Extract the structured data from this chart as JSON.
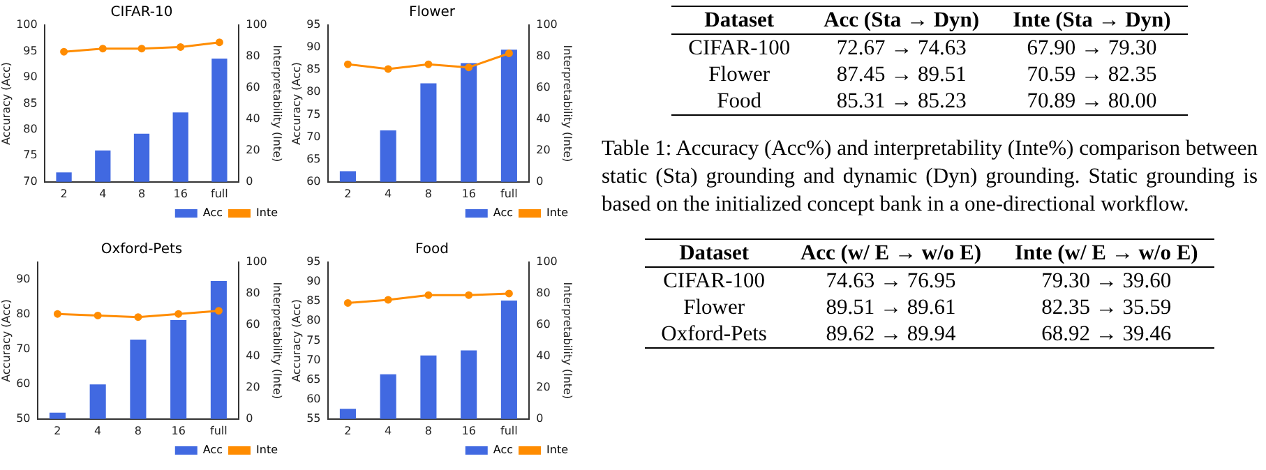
{
  "chart_data": [
    {
      "type": "bar",
      "title": "CIFAR-10",
      "categories": [
        "2",
        "4",
        "8",
        "16",
        "full"
      ],
      "ylabel": "Accuracy (Acc)",
      "y2label": "Interpretability (Inte)",
      "ylim": [
        70,
        100
      ],
      "yticks": [
        70,
        75,
        80,
        85,
        90,
        95,
        100
      ],
      "y2lim": [
        0,
        100
      ],
      "y2ticks": [
        0,
        20,
        40,
        60,
        80,
        100
      ],
      "legend": "bottom right",
      "marker": "circle",
      "series": [
        {
          "name": "Acc",
          "color": "#4169e1",
          "values": [
            71.8,
            76.0,
            79.2,
            83.3,
            93.6
          ]
        },
        {
          "name": "Inte",
          "type": "line",
          "axis": "y2",
          "color": "#ff8c00",
          "values": [
            83,
            85,
            85,
            86,
            89
          ]
        }
      ]
    },
    {
      "type": "bar",
      "title": "Flower",
      "categories": [
        "2",
        "4",
        "8",
        "16",
        "full"
      ],
      "ylabel": "Accuracy (Acc)",
      "y2label": "Interpretability (Inte)",
      "ylim": [
        60,
        95
      ],
      "yticks": [
        60,
        65,
        70,
        75,
        80,
        85,
        90,
        95
      ],
      "y2lim": [
        0,
        100
      ],
      "y2ticks": [
        0,
        20,
        40,
        60,
        80,
        100
      ],
      "legend": "bottom right",
      "marker": "circle",
      "series": [
        {
          "name": "Acc",
          "color": "#4169e1",
          "values": [
            62.4,
            71.5,
            82.0,
            86.5,
            89.5
          ]
        },
        {
          "name": "Inte",
          "type": "line",
          "axis": "y2",
          "color": "#ff8c00",
          "values": [
            75,
            72,
            75,
            73,
            82
          ]
        }
      ]
    },
    {
      "type": "bar",
      "title": "Oxford-Pets",
      "categories": [
        "2",
        "4",
        "8",
        "16",
        "full"
      ],
      "ylabel": "Accuracy (Acc)",
      "y2label": "Interpretability (Inte)",
      "ylim": [
        50,
        95
      ],
      "yticks": [
        50,
        60,
        70,
        80,
        90
      ],
      "y2lim": [
        0,
        100
      ],
      "y2ticks": [
        0,
        20,
        40,
        60,
        80,
        100
      ],
      "legend": "bottom right",
      "marker": "circle",
      "series": [
        {
          "name": "Acc",
          "color": "#4169e1",
          "values": [
            51.8,
            59.9,
            72.8,
            78.4,
            89.6
          ]
        },
        {
          "name": "Inte",
          "type": "line",
          "axis": "y2",
          "color": "#ff8c00",
          "values": [
            67,
            66,
            65,
            67,
            69
          ]
        }
      ]
    },
    {
      "type": "bar",
      "title": "Food",
      "categories": [
        "2",
        "4",
        "8",
        "16",
        "full"
      ],
      "ylabel": "Accuracy (Acc)",
      "y2label": "Interpretability (Inte)",
      "ylim": [
        55,
        95
      ],
      "yticks": [
        55,
        60,
        65,
        70,
        75,
        80,
        85,
        90,
        95
      ],
      "y2lim": [
        0,
        100
      ],
      "y2ticks": [
        0,
        20,
        40,
        60,
        80,
        100
      ],
      "legend": "bottom right",
      "marker": "circle",
      "series": [
        {
          "name": "Acc",
          "color": "#4169e1",
          "values": [
            57.6,
            66.4,
            71.2,
            72.5,
            85.2
          ]
        },
        {
          "name": "Inte",
          "type": "line",
          "axis": "y2",
          "color": "#ff8c00",
          "values": [
            74,
            76,
            79,
            79,
            80
          ]
        }
      ]
    },
    {
      "type": "other",
      "annotations": [
        "Dataset",
        "Acc (Sta → Dyn)",
        "Inte (Sta → Dyn)",
        "CIFAR-100",
        "72.67 → 74.63",
        "67.90 → 79.30",
        "Flower",
        "87.45 → 89.51",
        "70.59 → 82.35",
        "Food",
        "85.31 → 85.23",
        "70.89 → 80.00"
      ]
    },
    {
      "type": "other",
      "annotations": [
        "Table 1: Accuracy (Acc%) and interpretability (Inte%) comparison between static (Sta) grounding and dynamic (Dyn) grounding. Static grounding is based on the initialized concept bank in a one-directional workflow."
      ]
    },
    {
      "type": "other",
      "annotations": [
        "Dataset",
        "Acc (w/ E → w/o E)",
        "Inte (w/ E → w/o E)",
        "CIFAR-100",
        "74.63 → 76.95",
        "79.30 → 39.60",
        "Flower",
        "89.51 → 89.61",
        "82.35 → 35.59",
        "Oxford-Pets",
        "89.62 → 89.94",
        "68.92 → 39.46"
      ]
    }
  ]
}
